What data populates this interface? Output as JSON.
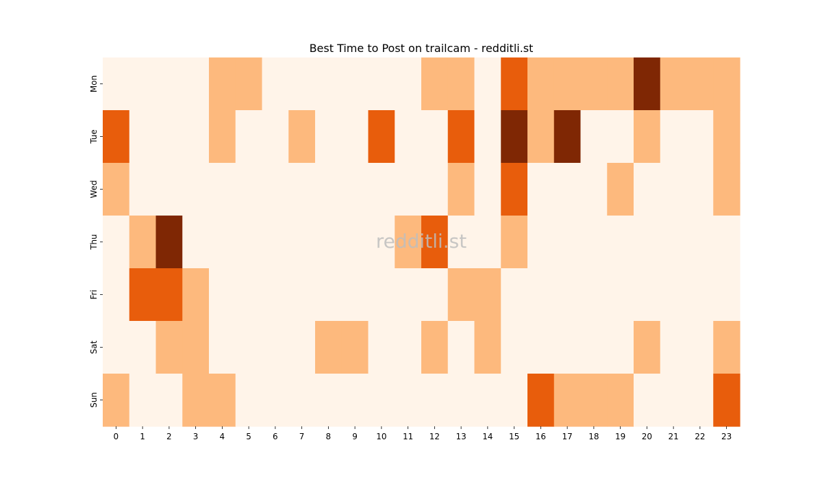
{
  "chart_data": {
    "type": "heatmap",
    "title": "Best Time to Post on trailcam - redditli.st",
    "watermark": "redditli.st",
    "x_labels": [
      "0",
      "1",
      "2",
      "3",
      "4",
      "5",
      "6",
      "7",
      "8",
      "9",
      "10",
      "11",
      "12",
      "13",
      "14",
      "15",
      "16",
      "17",
      "18",
      "19",
      "20",
      "21",
      "22",
      "23"
    ],
    "y_labels": [
      "Mon",
      "Tue",
      "Wed",
      "Thu",
      "Fri",
      "Sat",
      "Sun"
    ],
    "values": [
      [
        0,
        0,
        0,
        0,
        1,
        1,
        0,
        0,
        0,
        0,
        0,
        0,
        1,
        1,
        0,
        2,
        1,
        1,
        1,
        1,
        3,
        1,
        1,
        1
      ],
      [
        2,
        0,
        0,
        0,
        1,
        0,
        0,
        1,
        0,
        0,
        2,
        0,
        0,
        2,
        0,
        3,
        1,
        3,
        0,
        0,
        1,
        0,
        0,
        1
      ],
      [
        1,
        0,
        0,
        0,
        0,
        0,
        0,
        0,
        0,
        0,
        0,
        0,
        0,
        1,
        0,
        2,
        0,
        0,
        0,
        1,
        0,
        0,
        0,
        1
      ],
      [
        0,
        1,
        3,
        0,
        0,
        0,
        0,
        0,
        0,
        0,
        0,
        1,
        2,
        0,
        0,
        1,
        0,
        0,
        0,
        0,
        0,
        0,
        0,
        0
      ],
      [
        0,
        2,
        2,
        1,
        0,
        0,
        0,
        0,
        0,
        0,
        0,
        0,
        0,
        1,
        1,
        0,
        0,
        0,
        0,
        0,
        0,
        0,
        0,
        0
      ],
      [
        0,
        0,
        1,
        1,
        0,
        0,
        0,
        0,
        1,
        1,
        0,
        0,
        1,
        0,
        1,
        0,
        0,
        0,
        0,
        0,
        1,
        0,
        0,
        1
      ],
      [
        1,
        0,
        0,
        1,
        1,
        0,
        0,
        0,
        0,
        0,
        0,
        0,
        0,
        0,
        0,
        0,
        2,
        1,
        1,
        1,
        0,
        0,
        0,
        2
      ]
    ],
    "color_scale": [
      "#fff4e9",
      "#fdb97d",
      "#e85d0c",
      "#7f2704"
    ],
    "grid": false,
    "legend": "none"
  }
}
